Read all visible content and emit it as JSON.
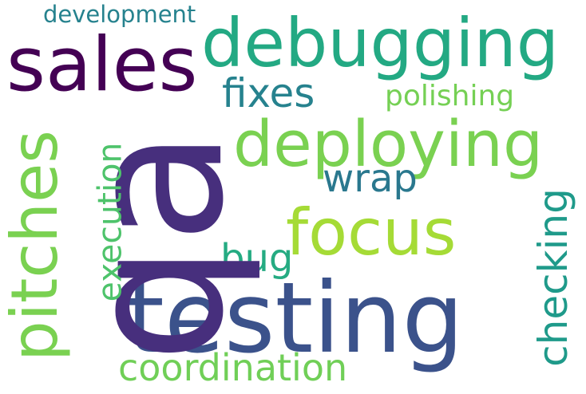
{
  "words": {
    "qa": {
      "text": "qa",
      "color": "#472f7d"
    },
    "testing": {
      "text": "testing",
      "color": "#3b528b"
    },
    "debugging": {
      "text": "debugging",
      "color": "#23a983"
    },
    "sales": {
      "text": "sales",
      "color": "#440154"
    },
    "deploying": {
      "text": "deploying",
      "color": "#7ad151"
    },
    "focus": {
      "text": "focus",
      "color": "#a5db36"
    },
    "pitches": {
      "text": "pitches",
      "color": "#7ad151"
    },
    "coordination": {
      "text": "coordination",
      "color": "#70cf57"
    },
    "checking": {
      "text": "checking",
      "color": "#1f9a8a"
    },
    "execution": {
      "text": "execution",
      "color": "#4ec36b"
    },
    "fixes": {
      "text": "fixes",
      "color": "#26828e"
    },
    "wrap": {
      "text": "wrap",
      "color": "#2a788e"
    },
    "bug": {
      "text": "bug",
      "color": "#25ab82"
    },
    "polishing": {
      "text": "polishing",
      "color": "#75d054"
    },
    "development": {
      "text": "development",
      "color": "#26828e"
    }
  }
}
